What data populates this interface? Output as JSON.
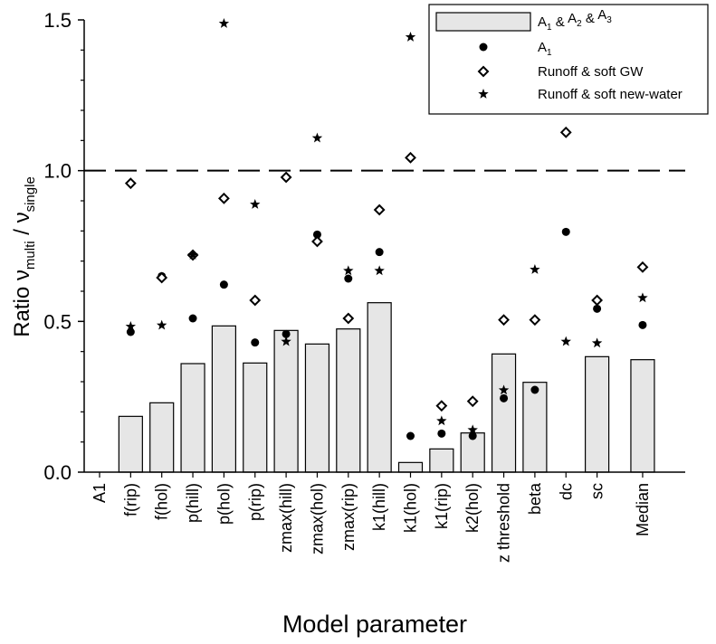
{
  "chart_data": {
    "type": "bar",
    "xlabel": "Model parameter",
    "ylabel": {
      "prefix": "Ratio ν",
      "sub1": "multi",
      "mid": " / ν",
      "sub2": "single"
    },
    "ylim": [
      0,
      1.5
    ],
    "yticks": [
      "0.0",
      "0.5",
      "1.0",
      "1.5"
    ],
    "ytick_values": [
      0,
      0.5,
      1.0,
      1.5
    ],
    "reference_line": 1.0,
    "categories": [
      "A1",
      "f(rip)",
      "f(hol)",
      "p(hill)",
      "p(hol)",
      "p(rip)",
      "zmax(hill)",
      "zmax(hol)",
      "zmax(rip)",
      "k1(hill)",
      "k1(hol)",
      "k1(rip)",
      "k2(hol)",
      "z threshold",
      "beta",
      "dc",
      "sc",
      "Median"
    ],
    "legend_position": "top-right",
    "legend": [
      {
        "key": "bars",
        "marker": "bar",
        "text": "A",
        "sub": [
          "1",
          "2",
          "3"
        ]
      },
      {
        "key": "a1",
        "marker": "circle",
        "text": "A",
        "sub": [
          "1"
        ]
      },
      {
        "key": "gw",
        "marker": "diamond",
        "text": "Runoff & soft GW"
      },
      {
        "key": "nw",
        "marker": "star",
        "text": "Runoff & soft new-water"
      }
    ],
    "series": [
      {
        "key": "bars",
        "type": "bar",
        "color": "#e6e6e6",
        "values": [
          null,
          0.185,
          0.23,
          0.36,
          0.485,
          0.362,
          0.47,
          0.425,
          0.475,
          0.562,
          0.032,
          0.077,
          0.13,
          0.392,
          0.298,
          null,
          0.383,
          0.373
        ]
      },
      {
        "key": "a1",
        "type": "scatter",
        "marker": "circle",
        "values": [
          null,
          0.465,
          0.65,
          0.51,
          0.622,
          0.43,
          0.458,
          0.788,
          0.642,
          0.73,
          0.12,
          0.128,
          0.12,
          0.245,
          0.273,
          0.797,
          0.542,
          0.488
        ]
      },
      {
        "key": "gw",
        "type": "scatter",
        "marker": "diamond",
        "values": [
          null,
          0.958,
          0.645,
          0.72,
          0.908,
          0.57,
          0.978,
          0.765,
          0.51,
          0.87,
          1.043,
          0.22,
          0.235,
          0.505,
          0.505,
          1.127,
          0.57,
          0.68
        ]
      },
      {
        "key": "nw",
        "type": "scatter",
        "marker": "star",
        "values": [
          null,
          0.483,
          0.487,
          0.72,
          1.488,
          0.888,
          0.433,
          1.108,
          0.668,
          0.668,
          1.443,
          0.17,
          0.14,
          0.272,
          0.672,
          0.433,
          0.428,
          0.578
        ]
      }
    ]
  }
}
